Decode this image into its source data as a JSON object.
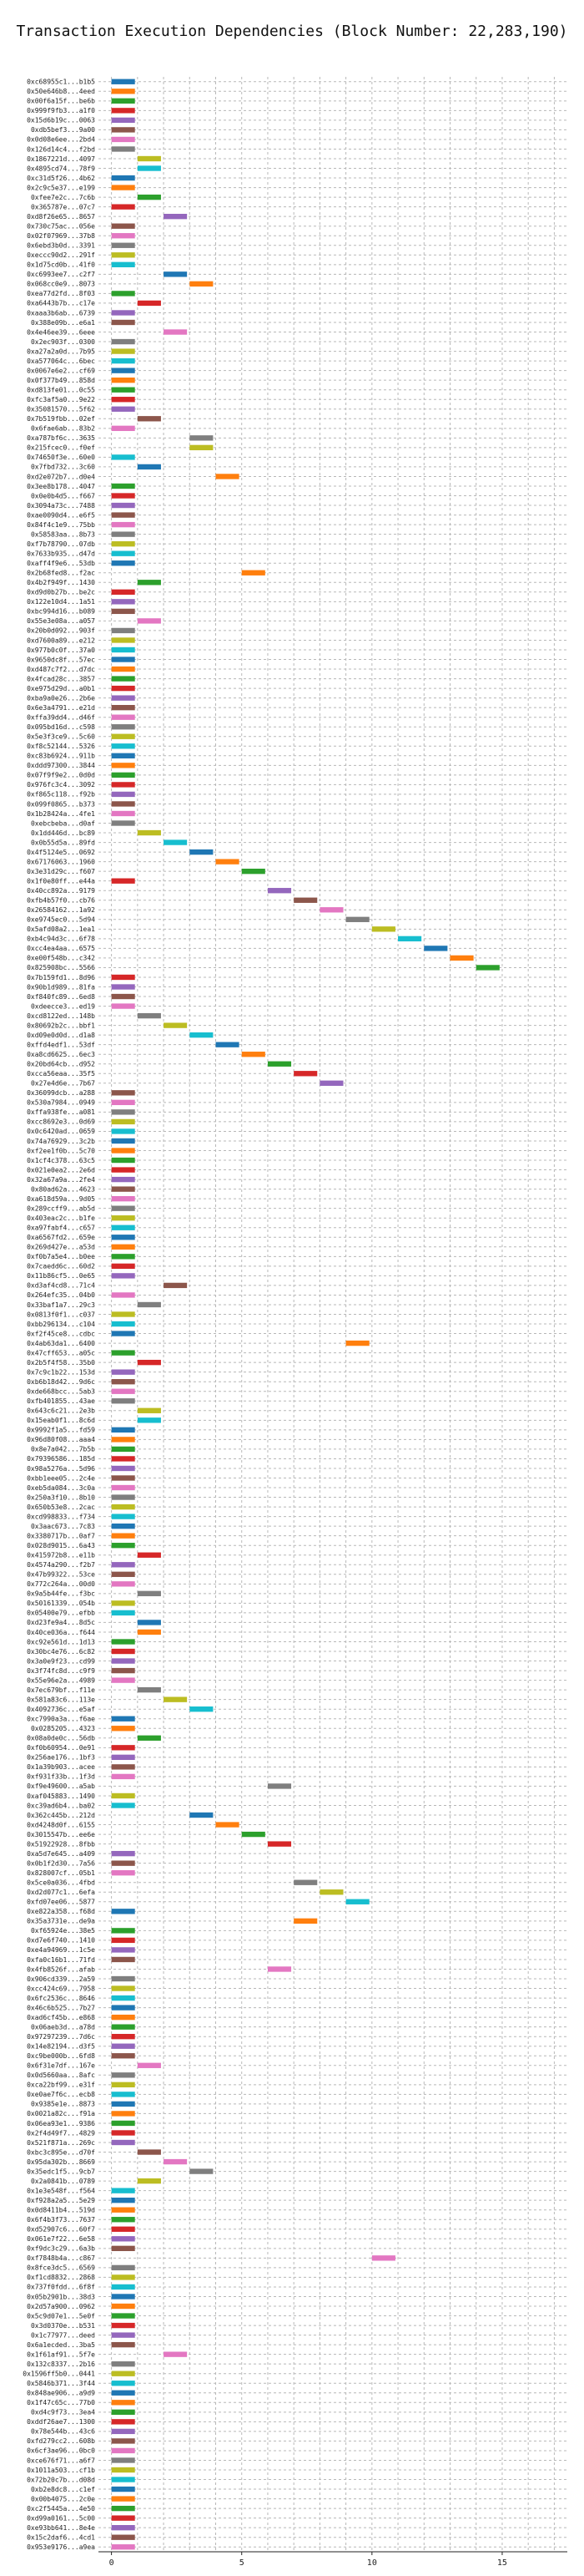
{
  "chart_data": {
    "type": "bar",
    "orientation": "horizontal-timeline",
    "title": "Transaction Execution Dependencies (Block Number: 22,283,190)",
    "xlabel": "",
    "ylabel": "",
    "xlim": [
      -0.5,
      17.5
    ],
    "xticks": [
      0,
      5,
      10,
      15
    ],
    "grid": true,
    "colors": [
      "#1f77b4",
      "#ff7f0e",
      "#2ca02c",
      "#d62728",
      "#9467bd",
      "#8c564b",
      "#e377c2",
      "#7f7f7f",
      "#bcbd22",
      "#17becf"
    ],
    "transactions": [
      [
        "0xc68955c1...b1b5",
        0
      ],
      [
        "0x50e646b8...4eed",
        0
      ],
      [
        "0x00f6a15f...be6b",
        0
      ],
      [
        "0x999f9fb3...a1f0",
        0
      ],
      [
        "0x15d6b19c...0063",
        0
      ],
      [
        "0xdb5bef3...9a00",
        0
      ],
      [
        "0x0d08e6ee...2bd4",
        0
      ],
      [
        "0x126d14c4...f2bd",
        0
      ],
      [
        "0x1867221d...4097",
        1
      ],
      [
        "0x4895cd74...78f9",
        1
      ],
      [
        "0xc31d5f26...4b62",
        0
      ],
      [
        "0x2c9c5e37...e199",
        0
      ],
      [
        "0xfee7e2c...7c6b",
        1
      ],
      [
        "0x365787e...07c7",
        0
      ],
      [
        "0xd8f26e65...8657",
        2
      ],
      [
        "0x730c75ac...056e",
        0
      ],
      [
        "0x02f07969...37b8",
        0
      ],
      [
        "0x6ebd3b0d...3391",
        0
      ],
      [
        "0xeccc90d2...291f",
        0
      ],
      [
        "0x1d75cd0b...41f0",
        0
      ],
      [
        "0xc6993ee7...c2f7",
        2
      ],
      [
        "0x068cc0e9...8073",
        3
      ],
      [
        "0xea77d2fd...8f03",
        0
      ],
      [
        "0xa6443b7b...c17e",
        1
      ],
      [
        "0xaaa3b6ab...6739",
        0
      ],
      [
        "0x388e09b...e6a1",
        0
      ],
      [
        "0x4e46ee39...6eee",
        2
      ],
      [
        "0x2ec903f...0300",
        0
      ],
      [
        "0xa27a2a0d...7b95",
        0
      ],
      [
        "0xa577064c...6bec",
        0
      ],
      [
        "0x0067e6e2...cf69",
        0
      ],
      [
        "0x0f377b49...858d",
        0
      ],
      [
        "0xd813fe01...0c55",
        0
      ],
      [
        "0xfc3af5a0...9e22",
        0
      ],
      [
        "0x35081570...5f62",
        0
      ],
      [
        "0x7b519fbb...02ef",
        1
      ],
      [
        "0x6fae6ab...83b2",
        0
      ],
      [
        "0xa787bf6c...3635",
        3
      ],
      [
        "0x215fcec0...f0ef",
        3
      ],
      [
        "0x74650f3e...60e0",
        0
      ],
      [
        "0x7fbd732...3c60",
        1
      ],
      [
        "0xd2e072b7...d0e4",
        4
      ],
      [
        "0x3ee8b178...4047",
        0
      ],
      [
        "0x0e0b4d5...f667",
        0
      ],
      [
        "0x3094a73c...7488",
        0
      ],
      [
        "0xae0090d4...e6f5",
        0
      ],
      [
        "0x84f4c1e9...75bb",
        0
      ],
      [
        "0x58583aa...8b73",
        0
      ],
      [
        "0xf7b78790...07db",
        0
      ],
      [
        "0x7633b935...d47d",
        0
      ],
      [
        "0xaff4f9e6...53db",
        0
      ],
      [
        "0x2b68fed8...f2ac",
        5
      ],
      [
        "0x4b2f949f...1430",
        1
      ],
      [
        "0xd9d0b27b...be2c",
        0
      ],
      [
        "0x122e10d4...1a51",
        0
      ],
      [
        "0xbc994d16...b089",
        0
      ],
      [
        "0x55e3e08a...a057",
        1
      ],
      [
        "0x20b0d092...903f",
        0
      ],
      [
        "0xd7600a89...e212",
        0
      ],
      [
        "0x977b0c0f...37a0",
        0
      ],
      [
        "0x9650dc8f...57ec",
        0
      ],
      [
        "0xd487c7f2...d7dc",
        0
      ],
      [
        "0x4fcad28c...3857",
        0
      ],
      [
        "0xe975d29d...a0b1",
        0
      ],
      [
        "0xba9a0e26...2b6e",
        0
      ],
      [
        "0x6e3a4791...e21d",
        0
      ],
      [
        "0xffa39dd4...d46f",
        0
      ],
      [
        "0x095bd16d...c598",
        0
      ],
      [
        "0x5e3f3ce9...5c60",
        0
      ],
      [
        "0xf8c52144...5326",
        0
      ],
      [
        "0xc83b6924...911b",
        0
      ],
      [
        "0xddd97300...3844",
        0
      ],
      [
        "0x07f9f9e2...0d0d",
        0
      ],
      [
        "0x976fc3c4...3092",
        0
      ],
      [
        "0xf865c118...f92b",
        0
      ],
      [
        "0x099f0865...b373",
        0
      ],
      [
        "0x1b28424a...4fe1",
        0
      ],
      [
        "0xebcbeba...d0af",
        0
      ],
      [
        "0x1dd446d...bc89",
        1
      ],
      [
        "0x0b55d5a...89fd",
        2
      ],
      [
        "0x4f5124e5...0692",
        3
      ],
      [
        "0x67176063...1960",
        4
      ],
      [
        "0x3e31d29c...f607",
        5
      ],
      [
        "0x1f0e80ff...e44a",
        0
      ],
      [
        "0x40cc892a...9179",
        6
      ],
      [
        "0xfb4b57f0...cb76",
        7
      ],
      [
        "0x26584162...1a92",
        8
      ],
      [
        "0xe9745ec0...5d94",
        9
      ],
      [
        "0x5afd08a2...1ea1",
        10
      ],
      [
        "0xb4c94d3c...6f78",
        11
      ],
      [
        "0xcc4ea4aa...6575",
        12
      ],
      [
        "0xe00f548b...c342",
        13
      ],
      [
        "0x825908bc...5566",
        14
      ],
      [
        "0x7b159fd1...8d96",
        0
      ],
      [
        "0x90b1d989...81fa",
        0
      ],
      [
        "0xf840fc89...6ed8",
        0
      ],
      [
        "0xdeecce3...ed19",
        0
      ],
      [
        "0xcd8122ed...148b",
        1
      ],
      [
        "0x80692b2c...bbf1",
        2
      ],
      [
        "0xd09e0d0d...d1a8",
        3
      ],
      [
        "0xffd4edf1...53df",
        4
      ],
      [
        "0xa8cd6625...6ec3",
        5
      ],
      [
        "0x20bd64cb...d952",
        6
      ],
      [
        "0xcca56eaa...35f5",
        7
      ],
      [
        "0x27e4d6e...7b67",
        8
      ],
      [
        "0x36099dcb...a288",
        0
      ],
      [
        "0x530a7984...0949",
        0
      ],
      [
        "0xffa938fe...a081",
        0
      ],
      [
        "0xcc8692e3...0d69",
        0
      ],
      [
        "0x0c6420ad...0659",
        0
      ],
      [
        "0x74a76929...3c2b",
        0
      ],
      [
        "0xf2ee1f0b...5c70",
        0
      ],
      [
        "0x1cf4c378...63c5",
        0
      ],
      [
        "0x021e0ea2...2e6d",
        0
      ],
      [
        "0x32a67a9a...2fe4",
        0
      ],
      [
        "0x80ad62a...4623",
        0
      ],
      [
        "0xa618d59a...9d05",
        0
      ],
      [
        "0x289ccff9...ab5d",
        0
      ],
      [
        "0x403eac2c...b1fe",
        0
      ],
      [
        "0xa97fabf4...c657",
        0
      ],
      [
        "0xa6567fd2...659e",
        0
      ],
      [
        "0x269d427e...a53d",
        0
      ],
      [
        "0xf0b7a5e4...b0ee",
        0
      ],
      [
        "0x7caedd6c...60d2",
        0
      ],
      [
        "0x11b86cf5...0e65",
        0
      ],
      [
        "0xd3af4cd8...71c4",
        2
      ],
      [
        "0x264efc35...04b0",
        0
      ],
      [
        "0x33baf1a7...29c3",
        1
      ],
      [
        "0x0813f0f1...c037",
        0
      ],
      [
        "0xbb296134...c104",
        0
      ],
      [
        "0xf2f45ce8...cdbc",
        0
      ],
      [
        "0x4ab63da1...6400",
        9
      ],
      [
        "0x47cff653...a05c",
        0
      ],
      [
        "0x2b5f4f58...35b0",
        1
      ],
      [
        "0x7c9c1b22...153d",
        0
      ],
      [
        "0xb6b18d42...9d6c",
        0
      ],
      [
        "0xde668bcc...5ab3",
        0
      ],
      [
        "0xfb401855...43ae",
        0
      ],
      [
        "0x643c6c21...2e3b",
        1
      ],
      [
        "0x15eab0f1...8c6d",
        1
      ],
      [
        "0x9992f1a5...fd59",
        0
      ],
      [
        "0x96d80f08...aaa4",
        0
      ],
      [
        "0x8e7a042...7b5b",
        0
      ],
      [
        "0x79396586...185d",
        0
      ],
      [
        "0x98a5276a...5d96",
        0
      ],
      [
        "0xbb1eee05...2c4e",
        0
      ],
      [
        "0xeb5da084...3c0a",
        0
      ],
      [
        "0x250a3f10...8b10",
        0
      ],
      [
        "0x650b53e8...2cac",
        0
      ],
      [
        "0xcd998833...f734",
        0
      ],
      [
        "0x3aac673...7c83",
        0
      ],
      [
        "0x3380717b...0af7",
        0
      ],
      [
        "0x028d9015...6a43",
        0
      ],
      [
        "0x415972b8...e11b",
        1
      ],
      [
        "0x4574a290...f2b7",
        0
      ],
      [
        "0x47b99322...53ce",
        0
      ],
      [
        "0x772c264a...00d0",
        0
      ],
      [
        "0x9a5b44fe...f3bc",
        1
      ],
      [
        "0x50161339...054b",
        0
      ],
      [
        "0x05400e79...efbb",
        0
      ],
      [
        "0xd23fe9a4...8d5c",
        1
      ],
      [
        "0x40ce036a...f644",
        1
      ],
      [
        "0xc92e561d...1d13",
        0
      ],
      [
        "0x30bc4e76...6c82",
        0
      ],
      [
        "0x3a0e9f23...cd99",
        0
      ],
      [
        "0x3f74fc8d...c9f9",
        0
      ],
      [
        "0x55e96e2a...4989",
        0
      ],
      [
        "0x7ec679bf...f11e",
        1
      ],
      [
        "0x581a83c6...113e",
        2
      ],
      [
        "0x4092736c...e5af",
        3
      ],
      [
        "0xc7990a3a...f6ae",
        0
      ],
      [
        "0x0285205...4323",
        0
      ],
      [
        "0x08a0de0c...56db",
        1
      ],
      [
        "0xf0b60954...0e91",
        0
      ],
      [
        "0x256ae176...1bf3",
        0
      ],
      [
        "0x1a39b903...acee",
        0
      ],
      [
        "0xf931f33b...1f3d",
        0
      ],
      [
        "0xf9e49600...a5ab",
        6
      ],
      [
        "0xaf045883...1490",
        0
      ],
      [
        "0xc39ad6b4...ba02",
        0
      ],
      [
        "0x362c445b...212d",
        3
      ],
      [
        "0xd4248d0f...6155",
        4
      ],
      [
        "0x3015547b...ee6e",
        5
      ],
      [
        "0x51922928...8fbb",
        6
      ],
      [
        "0xa5d7e645...a409",
        0
      ],
      [
        "0x0b1f2d30...7a56",
        0
      ],
      [
        "0x828007cf...05b1",
        0
      ],
      [
        "0x5ce0a036...4fbd",
        7
      ],
      [
        "0xd2d077c1...6efa",
        8
      ],
      [
        "0xfd07ee06...5877",
        9
      ],
      [
        "0xe822a358...f68d",
        0
      ],
      [
        "0x35a3731e...de9a",
        7
      ],
      [
        "0xf65924e...38e5",
        0
      ],
      [
        "0xd7e6f740...1410",
        0
      ],
      [
        "0xe4a94969...1c5e",
        0
      ],
      [
        "0xfa0c16b1...71fd",
        0
      ],
      [
        "0x4fb8526f...afab",
        6
      ],
      [
        "0x906cd339...2a59",
        0
      ],
      [
        "0xcc424c69...7958",
        0
      ],
      [
        "0x6fc2536c...8646",
        0
      ],
      [
        "0x46c6b525...7b27",
        0
      ],
      [
        "0xad6cf45b...e868",
        0
      ],
      [
        "0x06aeb3d...a78d",
        0
      ],
      [
        "0x97297239...7d6c",
        0
      ],
      [
        "0x14e82194...d3f5",
        0
      ],
      [
        "0xc9be000b...6fd8",
        0
      ],
      [
        "0x6f31e7df...167e",
        1
      ],
      [
        "0x0d5660aa...8afc",
        0
      ],
      [
        "0xca22bf99...e31f",
        0
      ],
      [
        "0xe0ae7f6c...ecb8",
        0
      ],
      [
        "0x9385e1e...8873",
        0
      ],
      [
        "0x0021a82c...f91a",
        0
      ],
      [
        "0x06ea93e1...9386",
        0
      ],
      [
        "0x2f4d49f7...4829",
        0
      ],
      [
        "0x521f871a...269c",
        0
      ],
      [
        "0xbc3c895e...d70f",
        1
      ],
      [
        "0x95da302b...8669",
        2
      ],
      [
        "0x35edc1f5...9cb7",
        3
      ],
      [
        "0x2a0841b...0789",
        1
      ],
      [
        "0x1e3e548f...f564",
        0
      ],
      [
        "0xf928a2a5...5e29",
        0
      ],
      [
        "0x0d8411b4...519d",
        0
      ],
      [
        "0x6f4b3f73...7637",
        0
      ],
      [
        "0xd52907c6...60f7",
        0
      ],
      [
        "0x061e7f22...6e58",
        0
      ],
      [
        "0xf9dc3c29...6a3b",
        0
      ],
      [
        "0xf7848b4a...c867",
        10
      ],
      [
        "0x8fce3dc5...6569",
        0
      ],
      [
        "0xf1cd8832...2868",
        0
      ],
      [
        "0x737f0fdd...6f8f",
        0
      ],
      [
        "0x05b2901b...38d3",
        0
      ],
      [
        "0x2d57a900...0962",
        0
      ],
      [
        "0x5c9d07e1...5e0f",
        0
      ],
      [
        "0x3d0370e...b531",
        0
      ],
      [
        "0x1c77977...deed",
        0
      ],
      [
        "0x6a1ecded...3ba5",
        0
      ],
      [
        "0x1f61af91...5f7e",
        2
      ],
      [
        "0x132c8337...2b16",
        0
      ],
      [
        "0x1596ff5b0...0441",
        0
      ],
      [
        "0x5846b371...3f44",
        0
      ],
      [
        "0x848ae906...a9d9",
        0
      ],
      [
        "0x1f47c65c...77b0",
        0
      ],
      [
        "0xd4c9f73...3ea4",
        0
      ],
      [
        "0xddf26ae7...1300",
        0
      ],
      [
        "0x78e544b...43c6",
        0
      ],
      [
        "0xfd279cc2...608b",
        0
      ],
      [
        "0x6cf3ae96...0bc0",
        0
      ],
      [
        "0xce676f71...a6f7",
        0
      ],
      [
        "0x1011a503...cf1b",
        0
      ],
      [
        "0x72b20c7b...d08d",
        0
      ],
      [
        "0xb2e8dc8...c1ef",
        0
      ],
      [
        "0x00b4075...2c0e",
        0
      ],
      [
        "0xc2f5445a...4e50",
        0
      ],
      [
        "0xd99a0161...5c00",
        0
      ],
      [
        "0xe93bb641...8e4e",
        0
      ],
      [
        "0x15c2daf6...4cd1",
        0
      ],
      [
        "0x953e9176...a9ea",
        0
      ]
    ]
  }
}
